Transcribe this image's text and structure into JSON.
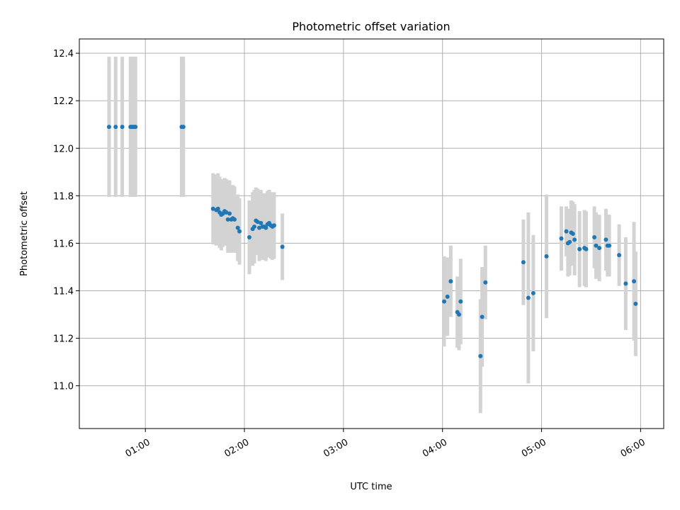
{
  "chart_data": {
    "type": "scatter",
    "title": "Photometric offset variation",
    "xlabel": "UTC time",
    "ylabel": "Photometric offset",
    "xlim": [
      "00:20",
      "06:14"
    ],
    "ylim": [
      10.82,
      12.46
    ],
    "grid": true,
    "x_ticks": [
      "01:00",
      "02:00",
      "03:00",
      "04:00",
      "05:00",
      "06:00"
    ],
    "y_ticks": [
      "11.0",
      "11.2",
      "11.4",
      "11.6",
      "11.8",
      "12.0",
      "12.2",
      "12.4"
    ],
    "colors": {
      "points": "#1f77b4",
      "errorbars": "#d3d3d3",
      "grid": "#b0b0b0"
    },
    "series": [
      {
        "x": [
          "00:38",
          "00:42",
          "00:46",
          "00:51",
          "00:52",
          "00:53",
          "00:54",
          "01:22",
          "01:23",
          "01:41",
          "01:43",
          "01:44",
          "01:45",
          "01:46",
          "01:47",
          "01:48",
          "01:49",
          "01:50",
          "01:51",
          "01:52",
          "01:53",
          "01:54",
          "01:56",
          "01:57",
          "02:03",
          "02:05",
          "02:06",
          "02:07",
          "02:08",
          "02:09",
          "02:10",
          "02:11",
          "02:12",
          "02:13",
          "02:14",
          "02:15",
          "02:16",
          "02:17",
          "02:18",
          "02:23",
          "04:01",
          "04:03",
          "04:05",
          "04:09",
          "04:10",
          "04:11",
          "04:23",
          "04:24",
          "04:26",
          "04:49",
          "04:52",
          "04:55",
          "05:03",
          "05:12",
          "05:15",
          "05:16",
          "05:17",
          "05:18",
          "05:19",
          "05:20",
          "05:23",
          "05:26",
          "05:27",
          "05:32",
          "05:33",
          "05:35",
          "05:39",
          "05:40",
          "05:41",
          "05:47",
          "05:51",
          "05:56",
          "05:57"
        ],
        "y": [
          12.09,
          12.09,
          12.09,
          12.09,
          12.09,
          12.09,
          12.09,
          12.09,
          12.09,
          11.745,
          11.74,
          11.745,
          11.73,
          11.72,
          11.725,
          11.735,
          11.73,
          11.7,
          11.725,
          11.7,
          11.705,
          11.7,
          11.665,
          11.65,
          11.625,
          11.66,
          11.67,
          11.695,
          11.69,
          11.665,
          11.685,
          11.67,
          11.67,
          11.665,
          11.68,
          11.685,
          11.675,
          11.67,
          11.675,
          11.585,
          11.355,
          11.375,
          11.44,
          11.31,
          11.3,
          11.355,
          11.125,
          11.29,
          11.435,
          11.52,
          11.37,
          11.39,
          11.545,
          11.62,
          11.65,
          11.6,
          11.605,
          11.645,
          11.64,
          11.615,
          11.575,
          11.58,
          11.575,
          11.625,
          11.59,
          11.58,
          11.615,
          11.59,
          11.59,
          11.55,
          11.43,
          11.44,
          11.345
        ],
        "yerr": [
          0.295,
          0.295,
          0.295,
          0.295,
          0.295,
          0.295,
          0.295,
          0.295,
          0.295,
          0.15,
          0.15,
          0.15,
          0.15,
          0.15,
          0.14,
          0.14,
          0.14,
          0.14,
          0.14,
          0.14,
          0.14,
          0.14,
          0.14,
          0.14,
          0.155,
          0.155,
          0.155,
          0.14,
          0.14,
          0.14,
          0.14,
          0.14,
          0.14,
          0.14,
          0.14,
          0.14,
          0.14,
          0.14,
          0.14,
          0.14,
          0.19,
          0.165,
          0.15,
          0.15,
          0.15,
          0.18,
          0.24,
          0.21,
          0.155,
          0.18,
          0.36,
          0.245,
          0.26,
          0.135,
          0.105,
          0.14,
          0.14,
          0.135,
          0.135,
          0.15,
          0.16,
          0.16,
          0.16,
          0.13,
          0.14,
          0.14,
          0.13,
          0.13,
          0.13,
          0.13,
          0.195,
          0.25,
          0.22
        ]
      }
    ]
  }
}
